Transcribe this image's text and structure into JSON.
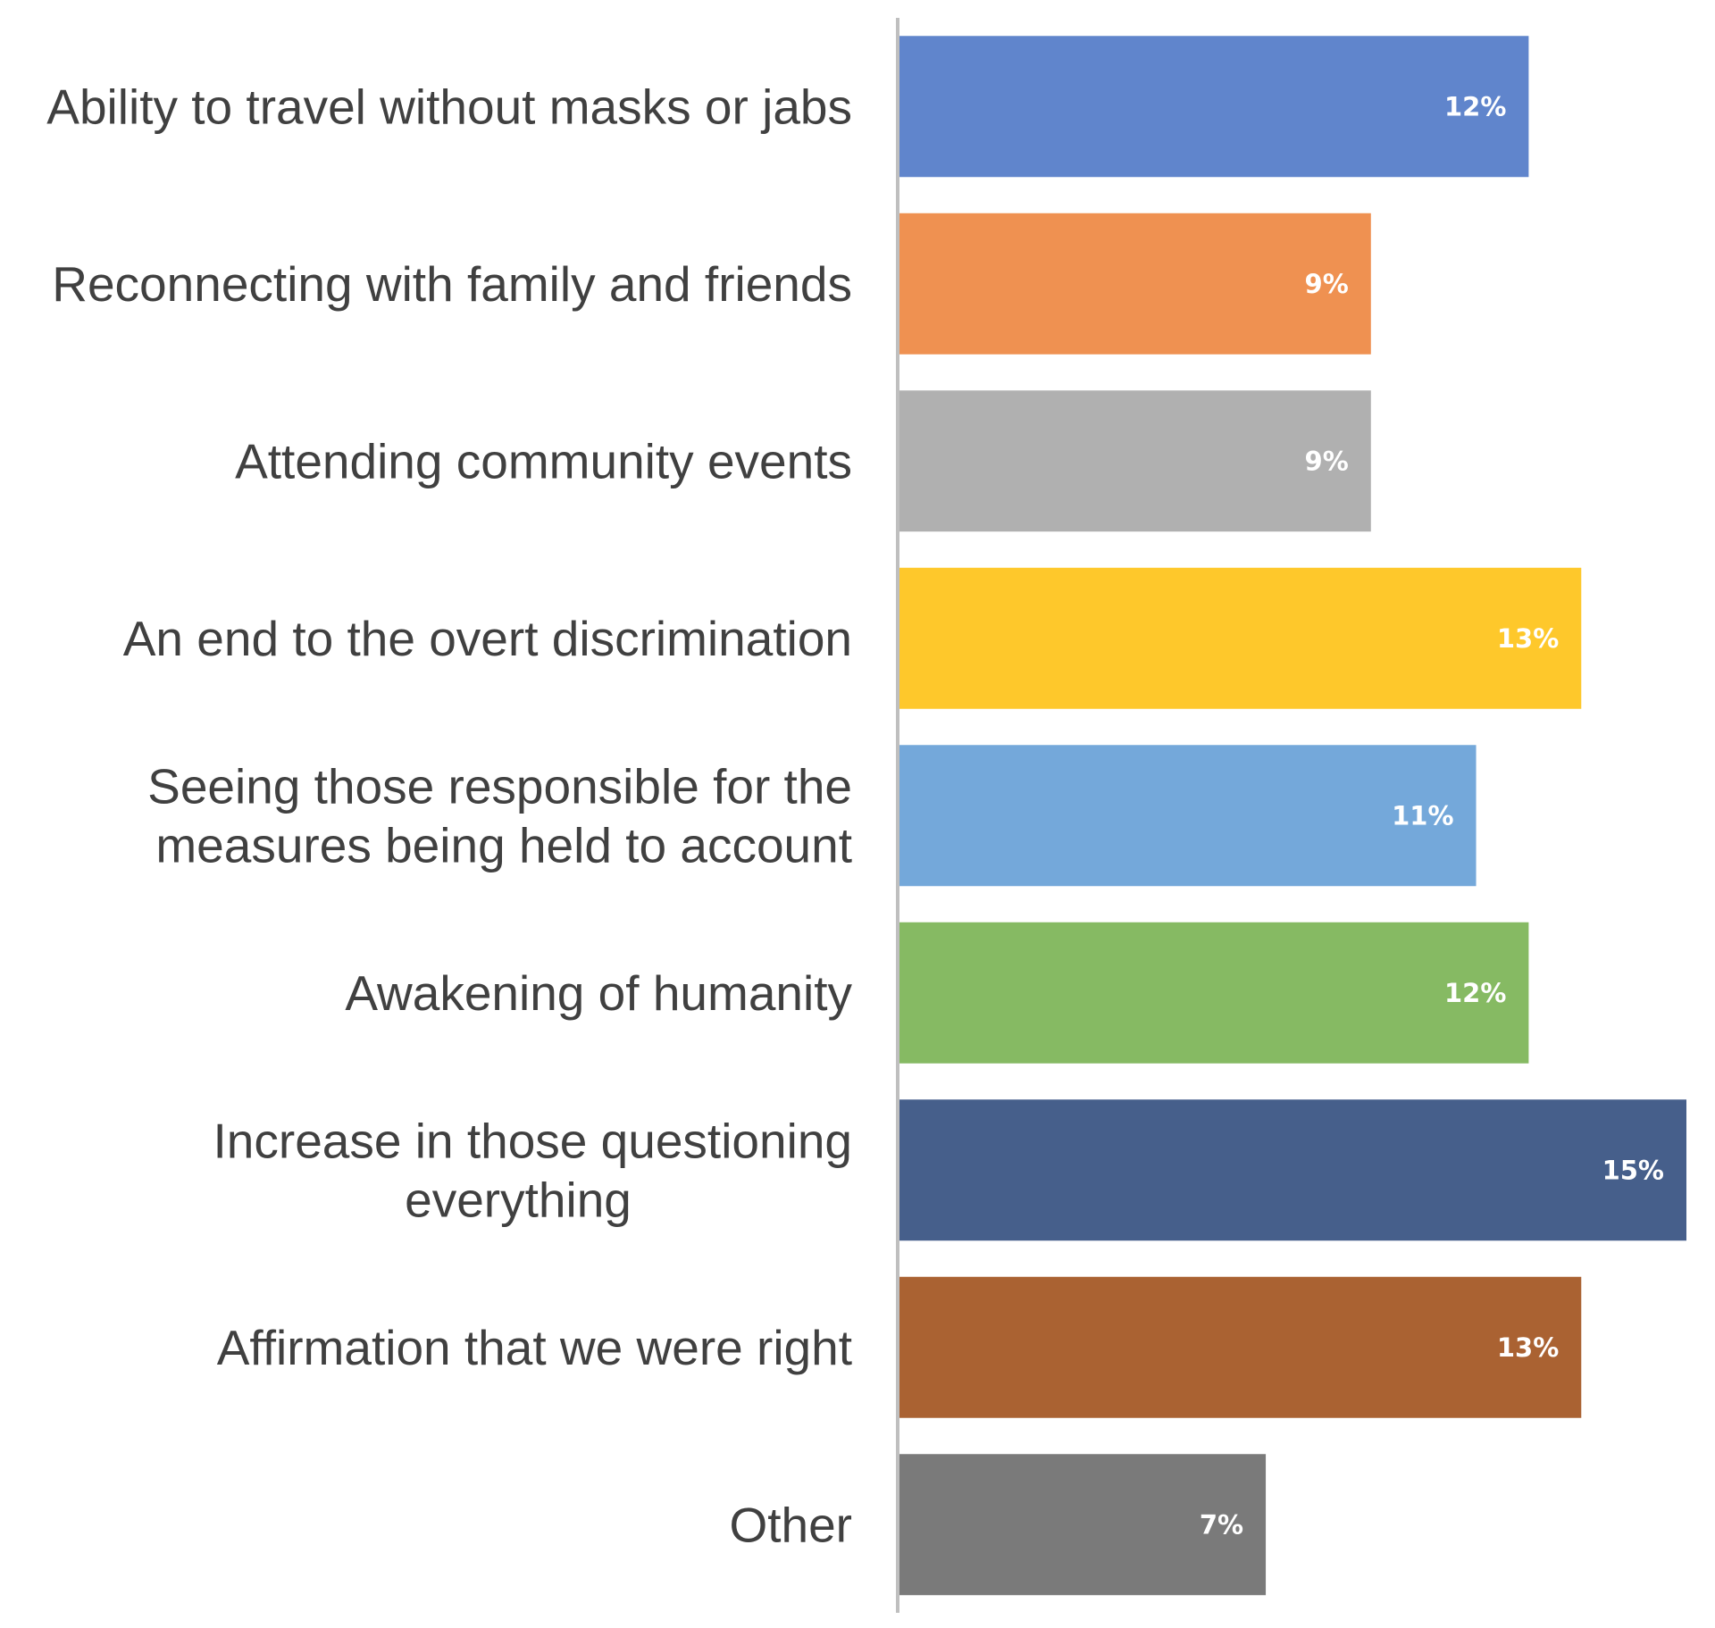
{
  "chart_data": {
    "type": "bar",
    "orientation": "horizontal",
    "categories": [
      [
        "Ability to travel without masks or jabs"
      ],
      [
        "Reconnecting with family and friends"
      ],
      [
        "Attending community events"
      ],
      [
        "An end to the overt discrimination"
      ],
      [
        "Seeing those responsible for the",
        "measures being held to account"
      ],
      [
        "Awakening of humanity"
      ],
      [
        "Increase in those questioning",
        "everything"
      ],
      [
        "Affirmation that we were right"
      ],
      [
        "Other"
      ]
    ],
    "values": [
      12,
      9,
      9,
      13,
      11,
      12,
      15,
      13,
      7
    ],
    "data_labels": [
      "12%",
      "9%",
      "9%",
      "13%",
      "11%",
      "12%",
      "15%",
      "13%",
      "7%"
    ],
    "colors": [
      "#6085CC",
      "#EF9151",
      "#B0B0B0",
      "#FEC82B",
      "#74A8DA",
      "#86BA63",
      "#465F8B",
      "#AA6232",
      "#7A7A7A"
    ],
    "axis_color": "#BFBFBF",
    "label_color": "#404040",
    "title": "",
    "xlabel": "",
    "ylabel": "",
    "xlim": [
      0,
      15
    ],
    "grid": false,
    "legend": "none"
  }
}
